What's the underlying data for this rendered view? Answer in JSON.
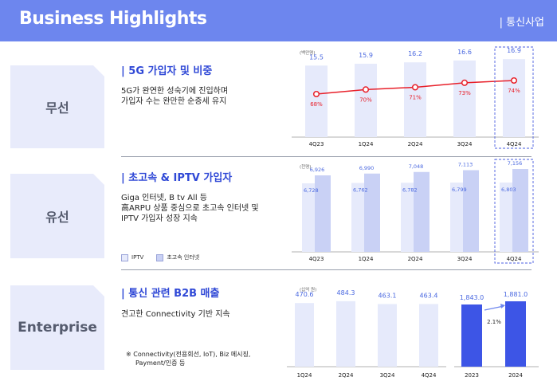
{
  "header": {
    "title": "Business Highlights",
    "section": "| 통신사업"
  },
  "sections": {
    "wireless": {
      "label": "무선",
      "title": "| 5G 가입자 및 비중",
      "desc_line1": "5G가 완연한 성숙기에 진입하며",
      "desc_line2": "가입자 수는 완만한 순증세 유지"
    },
    "wired": {
      "label": "유선",
      "title": "| 초고속 & IPTV 가입자",
      "desc_line1": "Giga 인터넷, B tv All 등",
      "desc_line2": "高ARPU 상품 중심으로 초고속 인터넷 및",
      "desc_line3": "IPTV 가입자 성장 지속",
      "legend_iptv": "IPTV",
      "legend_broadband": "초고속 인터넷"
    },
    "enterprise": {
      "label": "Enterprise",
      "title": "| 통신 관련 B2B 매출",
      "desc": "견고한 Connectivity 기반 지속",
      "note_line1": "※ Connectivity(전용회선, IoT), Biz 메시징,",
      "note_line2": "Payment/인증 등"
    }
  },
  "colors": {
    "accent": "#2f48d6",
    "header": "#6d86ee",
    "bar_light": "#e6eafb",
    "bar_mid": "#c9d1f5",
    "bar_dark": "#3d55e6",
    "line": "#e8202a",
    "value_blue": "#4a68e0"
  },
  "chart_data": [
    {
      "id": "wireless",
      "type": "bar",
      "unit": "(백만명)",
      "categories": [
        "4Q23",
        "1Q24",
        "2Q24",
        "3Q24",
        "4Q24"
      ],
      "values": [
        15.5,
        15.9,
        16.2,
        16.6,
        16.9
      ],
      "value_labels": [
        "15.5",
        "15.9",
        "16.2",
        "16.6",
        "16.9"
      ],
      "line_series": {
        "name": "5G 비중",
        "values": [
          68,
          70,
          71,
          73,
          74
        ],
        "labels": [
          "68%",
          "70%",
          "71%",
          "73%",
          "74%"
        ]
      },
      "highlight": "4Q24"
    },
    {
      "id": "wired",
      "type": "bar",
      "unit": "(천명)",
      "categories": [
        "4Q23",
        "1Q24",
        "2Q24",
        "3Q24",
        "4Q24"
      ],
      "series": [
        {
          "name": "IPTV",
          "values": [
            6728,
            6762,
            6782,
            6799,
            6803
          ],
          "labels": [
            "6,728",
            "6,762",
            "6,782",
            "6,799",
            "6,803"
          ]
        },
        {
          "name": "초고속 인터넷",
          "values": [
            6926,
            6990,
            7048,
            7113,
            7156
          ],
          "labels": [
            "6,926",
            "6,990",
            "7,048",
            "7,113",
            "7,156"
          ]
        }
      ],
      "highlight": "4Q24"
    },
    {
      "id": "enterprise_q",
      "type": "bar",
      "unit": "(십억 원)",
      "categories": [
        "1Q24",
        "2Q24",
        "3Q24",
        "4Q24"
      ],
      "values": [
        470.6,
        484.3,
        463.1,
        463.4
      ],
      "value_labels": [
        "470.6",
        "484.3",
        "463.1",
        "463.4"
      ]
    },
    {
      "id": "enterprise_y",
      "type": "bar",
      "categories": [
        "2023",
        "2024"
      ],
      "values": [
        1843.0,
        1881.0
      ],
      "value_labels": [
        "1,843.0",
        "1,881.0"
      ],
      "growth_label": "2.1%"
    }
  ]
}
